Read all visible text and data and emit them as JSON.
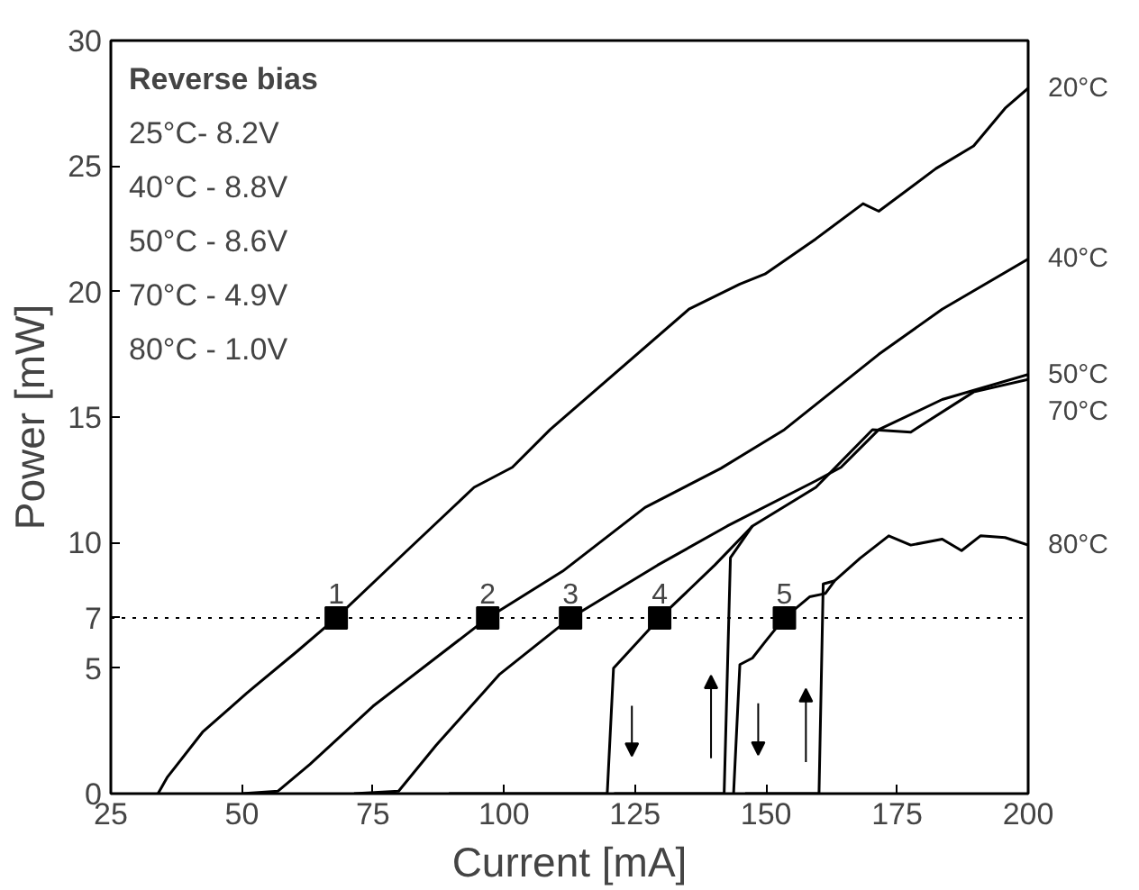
{
  "chart_data": {
    "type": "line",
    "xlabel": "Current [mA]",
    "ylabel": "Power [mW]",
    "xlim": [
      25,
      200
    ],
    "xticks": [
      25,
      50,
      75,
      100,
      125,
      150,
      175,
      200
    ],
    "ylim": [
      0,
      30
    ],
    "yticks": [
      0,
      5,
      7,
      10,
      15,
      20,
      25,
      30
    ],
    "grid": false,
    "marker": "none",
    "line_style": "solid",
    "ref_lines": [
      {
        "axis": "y",
        "value": 7,
        "line_style": "dotted",
        "color": "#000000"
      }
    ],
    "annotations": [
      "Reverse bias",
      "25°C-  8.2V",
      "40°C - 8.8V",
      "50°C - 8.6V",
      "70°C - 4.9V",
      "80°C - 1.0V",
      {
        "text": "1",
        "x": 68.0,
        "y": 7
      },
      {
        "text": "2",
        "x": 96.9,
        "y": 7
      },
      {
        "text": "3",
        "x": 112.7,
        "y": 7
      },
      {
        "text": "4",
        "x": 129.7,
        "y": 7
      },
      {
        "text": "5",
        "x": 153.5,
        "y": 7
      }
    ],
    "series": [
      {
        "name": "20°C",
        "color": "#000000",
        "x": [
          34.0,
          35.8,
          42.5,
          50.9,
          60.5,
          68.0,
          81.1,
          94.3,
          101.6,
          108.8,
          135.3,
          145.0,
          149.8,
          159.5,
          168.5,
          171.5,
          182.4,
          189.6,
          195.6,
          200
        ],
        "values": [
          0,
          0.66,
          2.45,
          4.0,
          5.66,
          7,
          9.6,
          12.2,
          13.0,
          14.5,
          19.3,
          20.3,
          20.7,
          22.1,
          23.5,
          23.2,
          24.9,
          25.8,
          27.3,
          28.1
        ]
      },
      {
        "name": "40°C",
        "color": "#000000",
        "x": [
          50,
          56.9,
          63.0,
          75.0,
          96.9,
          111.2,
          126.9,
          141.4,
          153.5,
          171.5,
          183.6,
          200
        ],
        "values": [
          0,
          0.1,
          1.17,
          3.48,
          7,
          8.86,
          11.4,
          12.96,
          14.5,
          17.5,
          19.3,
          21.3
        ]
      },
      {
        "name": "50°C",
        "color": "#000000",
        "x": [
          71.4,
          79.9,
          87.1,
          99.2,
          112.7,
          129.3,
          142.6,
          159.5,
          164.3,
          171.5,
          183.6,
          200
        ],
        "values": [
          0,
          0.1,
          1.94,
          4.76,
          7,
          9.1,
          10.66,
          12.46,
          13.0,
          14.5,
          15.7,
          16.7
        ]
      },
      {
        "name": "70°C",
        "color": "#000000",
        "x": [
          89.5,
          119.7,
          120.9,
          129.7,
          140.2,
          147.4,
          159.5,
          170.3,
          177.6,
          189.6,
          200
        ],
        "values": [
          0,
          0,
          5.0,
          7,
          9.1,
          10.66,
          12.2,
          14.5,
          14.4,
          16.0,
          16.5
        ]
      },
      {
        "color": "#000000",
        "x": [
          121,
          142.0,
          143.2,
          147.4
        ],
        "values": [
          0,
          0,
          9.4,
          10.66
        ]
      },
      {
        "name": "80°C",
        "color": "#000000",
        "x": [
          143.8,
          145.0,
          147.4,
          149.8,
          153.5,
          158.3,
          161.3,
          163.1,
          167.9,
          173.4,
          177.6,
          183.6,
          187.3,
          190.9,
          195.6,
          200
        ],
        "values": [
          0,
          5.14,
          5.4,
          6.04,
          7,
          7.84,
          7.97,
          8.48,
          9.37,
          10.27,
          9.9,
          10.14,
          9.68,
          10.27,
          10.2,
          9.9
        ]
      },
      {
        "color": "#000000",
        "x": [
          146,
          160.1,
          160.9,
          163.1
        ],
        "values": [
          0,
          0,
          8.35,
          8.48
        ]
      },
      {
        "type": "scatter",
        "marker": "square",
        "color": "#000000",
        "x": [
          68.0,
          96.9,
          112.7,
          129.7,
          153.5
        ],
        "values": [
          7,
          7,
          7,
          7,
          7
        ]
      }
    ]
  }
}
